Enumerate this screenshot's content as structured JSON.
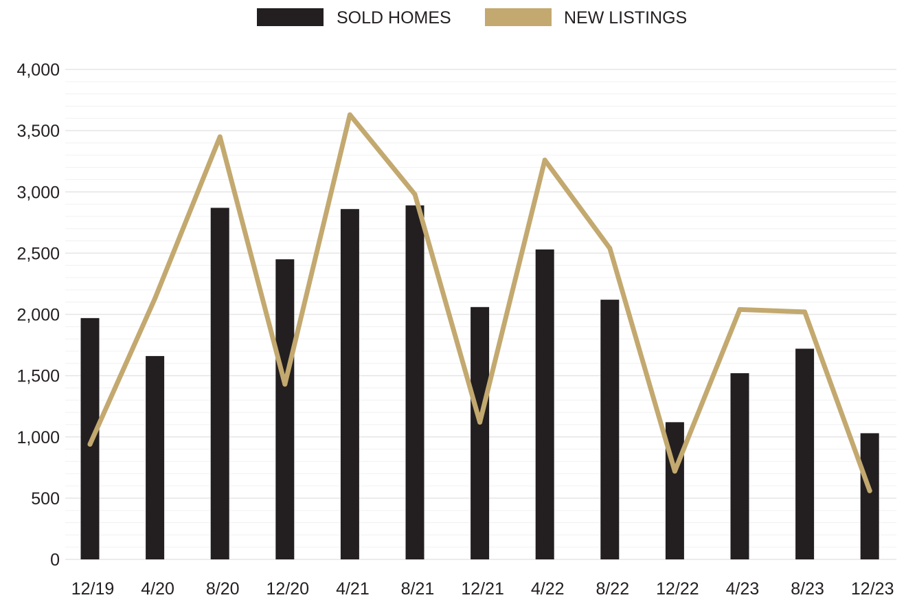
{
  "colors": {
    "sold": "#231f20",
    "listings": "#c3a96f",
    "grid": "#e5e5e5",
    "minor_grid": "#f0f0f0",
    "text": "#231f20"
  },
  "chart_data": {
    "type": "bar",
    "categories": [
      "12/19",
      "4/20",
      "8/20",
      "12/20",
      "4/21",
      "8/21",
      "12/21",
      "4/22",
      "8/22",
      "12/22",
      "4/23",
      "8/23",
      "12/23"
    ],
    "series": [
      {
        "name": "SOLD HOMES",
        "type": "bar",
        "values": [
          1970,
          1660,
          2870,
          2450,
          2860,
          2890,
          2060,
          2530,
          2120,
          1120,
          1520,
          1720,
          1030
        ]
      },
      {
        "name": "NEW LISTINGS",
        "type": "line",
        "values": [
          940,
          2130,
          3450,
          1430,
          3630,
          2980,
          1120,
          3260,
          2540,
          720,
          2040,
          2020,
          560
        ]
      }
    ],
    "yticks": [
      "0",
      "500",
      "1,000",
      "1,500",
      "2,000",
      "2,500",
      "3,000",
      "3,500",
      "4,000"
    ],
    "ylim": [
      0,
      4000
    ],
    "grid": true,
    "legend": "top-center"
  }
}
